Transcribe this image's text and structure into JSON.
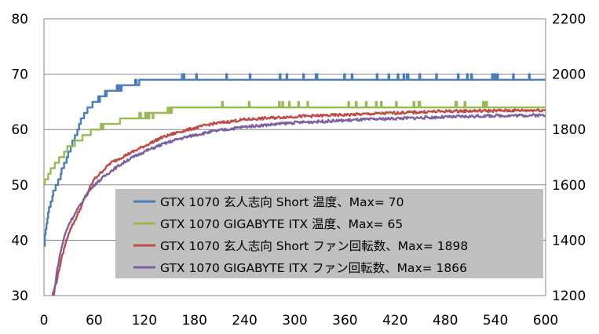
{
  "chart_data": {
    "type": "line",
    "x_ticks": [
      "0",
      "60",
      "120",
      "180",
      "240",
      "300",
      "360",
      "420",
      "480",
      "540",
      "600"
    ],
    "y_left_ticks": [
      "30",
      "40",
      "50",
      "60",
      "70",
      "80"
    ],
    "y_right_ticks": [
      "1200",
      "1400",
      "1600",
      "1800",
      "2000",
      "2200"
    ],
    "xlim": [
      0,
      600
    ],
    "ylim_left": [
      30,
      80
    ],
    "ylim_right": [
      1200,
      2200
    ],
    "grid": "horizontal",
    "legend_position": "center",
    "series": [
      {
        "name": "GTX 1070 玄人志向 Short 温度、Max= 70",
        "axis": "left",
        "color": "#4a7ebb",
        "x": [
          0,
          2,
          5,
          10,
          15,
          20,
          25,
          30,
          35,
          40,
          45,
          50,
          55,
          60,
          65,
          70,
          80,
          90,
          100,
          110,
          120,
          130,
          140,
          150,
          200,
          300,
          400,
          500,
          600
        ],
        "y": [
          39,
          42,
          45,
          48,
          50,
          52,
          54,
          56,
          58,
          60,
          62,
          63,
          64,
          65,
          65.5,
          66,
          67,
          67.5,
          68,
          68.5,
          68.8,
          69,
          69,
          69,
          69,
          69,
          69,
          69,
          69
        ],
        "spikes": [
          70,
          70,
          70,
          70,
          70,
          70,
          70
        ]
      },
      {
        "name": "GTX 1070 GIGABYTE ITX 温度、Max= 65",
        "axis": "left",
        "color": "#98b954",
        "x": [
          0,
          3,
          5,
          10,
          15,
          20,
          25,
          30,
          35,
          40,
          50,
          60,
          70,
          80,
          90,
          100,
          120,
          140,
          150,
          160,
          200,
          300,
          400,
          500,
          600
        ],
        "y": [
          50,
          51,
          52,
          53,
          54,
          55,
          56,
          57,
          57.5,
          58,
          59,
          60,
          60.5,
          61,
          61.5,
          62,
          62.5,
          63,
          63.5,
          64,
          64,
          64,
          64,
          64,
          64
        ],
        "spikes": [
          65,
          65,
          65
        ]
      },
      {
        "name": "GTX 1070 玄人志向 Short ファン回転数、Max= 1898",
        "axis": "right",
        "color": "#be4b48",
        "x": [
          10,
          15,
          20,
          25,
          30,
          40,
          50,
          60,
          80,
          100,
          120,
          140,
          160,
          180,
          200,
          240,
          300,
          360,
          420,
          480,
          540,
          600
        ],
        "y": [
          1200,
          1250,
          1320,
          1380,
          1430,
          1490,
          1560,
          1620,
          1680,
          1710,
          1740,
          1770,
          1790,
          1805,
          1820,
          1836,
          1847,
          1853,
          1860,
          1866,
          1868,
          1870
        ]
      },
      {
        "name": "GTX 1070 GIGABYTE ITX ファン回転数、Max= 1866",
        "axis": "right",
        "color": "#7d60a0",
        "x": [
          12,
          15,
          20,
          25,
          30,
          40,
          50,
          60,
          80,
          100,
          120,
          140,
          160,
          180,
          200,
          240,
          300,
          360,
          420,
          480,
          540,
          600
        ],
        "y": [
          1200,
          1280,
          1360,
          1420,
          1460,
          1510,
          1560,
          1600,
          1650,
          1690,
          1720,
          1745,
          1765,
          1780,
          1792,
          1810,
          1825,
          1833,
          1840,
          1845,
          1850,
          1852
        ]
      }
    ]
  }
}
